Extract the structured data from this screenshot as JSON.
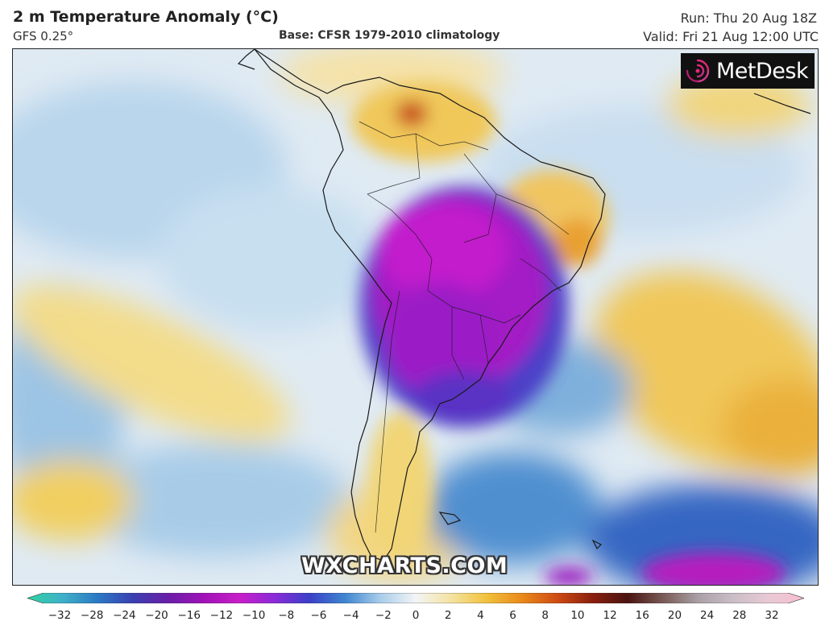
{
  "header": {
    "title": "2 m Temperature Anomaly (°C)",
    "model": "GFS 0.25°",
    "base": "Base: CFSR 1979-2010 climatology",
    "run": "Run: Thu 20 Aug 18Z",
    "valid": "Valid: Fri 21 Aug 12:00 UTC"
  },
  "map": {
    "region": "South America",
    "logo_text": "MetDesk",
    "logo_icon": "metdesk-spiral-icon",
    "watermark": "WXCHARTS.COM"
  },
  "legend": {
    "ticks": [
      "−32",
      "−28",
      "−24",
      "−20",
      "−16",
      "−12",
      "−10",
      "−8",
      "−6",
      "−4",
      "−2",
      "0",
      "2",
      "4",
      "6",
      "8",
      "10",
      "12",
      "16",
      "20",
      "24",
      "28",
      "32"
    ],
    "colors": [
      "#2fd3a4",
      "#3fb0c8",
      "#2b78c4",
      "#3a3fb0",
      "#6a1ea8",
      "#a012b8",
      "#c81fc8",
      "#8a2bd8",
      "#3a40c8",
      "#3f86d0",
      "#a9cdea",
      "#f3f4f6",
      "#f4e3a2",
      "#f1c23d",
      "#ea8a1a",
      "#cf4b12",
      "#8a1f0e",
      "#4a1410",
      "#7a5a55",
      "#a9a0a6",
      "#cbbec6",
      "#e8c9d4",
      "#f8bfd0"
    ],
    "palette": {
      "deep_magenta": "#b514c9",
      "violet": "#7b1fd4",
      "blue": "#2f5fc8",
      "light_blue": "#9fc6e6",
      "pale": "#e8f0f6",
      "yellow": "#f1d577",
      "orange": "#e79a2a",
      "red": "#c0391b"
    }
  }
}
